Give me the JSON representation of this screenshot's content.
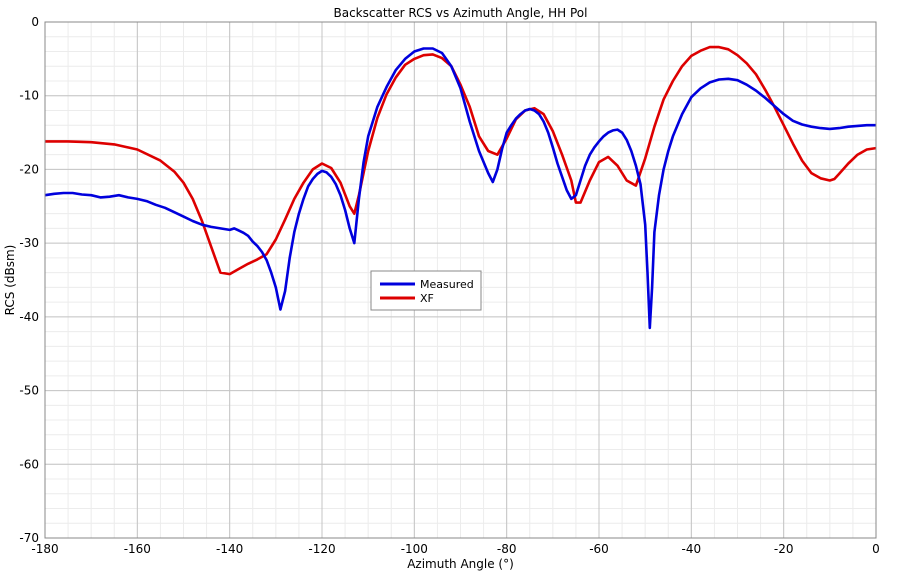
{
  "chart_data": {
    "type": "line",
    "title": "Backscatter RCS vs Azimuth Angle, HH Pol",
    "xlabel": "Azimuth Angle (°)",
    "ylabel": "RCS (dBsm)",
    "xlim": [
      -180,
      0
    ],
    "ylim": [
      -70,
      0
    ],
    "xticks": [
      -180,
      -160,
      -140,
      -120,
      -100,
      -80,
      -60,
      -40,
      -20,
      0
    ],
    "yticks": [
      0,
      -10,
      -20,
      -30,
      -40,
      -50,
      -60,
      -70
    ],
    "xtick_labels": [
      "-180",
      "-160",
      "-140",
      "-120",
      "-100",
      "-80",
      "-60",
      "-40",
      "-20",
      "0"
    ],
    "ytick_labels": [
      "0",
      "-10",
      "-20",
      "-30",
      "-40",
      "-50",
      "-60",
      "-70"
    ],
    "grid": true,
    "minor_grid": true,
    "legend_position": "center-left",
    "series": [
      {
        "name": "Measured",
        "color": "#0000dd",
        "x": [
          -180,
          -178,
          -176,
          -174,
          -172,
          -170,
          -168,
          -166,
          -164,
          -162,
          -160,
          -158,
          -156,
          -154,
          -152,
          -150,
          -148,
          -146,
          -144,
          -142,
          -140,
          -139,
          -138,
          -137,
          -136,
          -135,
          -134,
          -133,
          -132,
          -131,
          -130,
          -129,
          -128,
          -127,
          -126,
          -125,
          -124,
          -123,
          -122,
          -121,
          -120,
          -119,
          -118,
          -117,
          -116,
          -115,
          -114,
          -113,
          -112,
          -111,
          -110,
          -108,
          -106,
          -104,
          -102,
          -100,
          -98,
          -96,
          -94,
          -92,
          -90,
          -88,
          -86,
          -84,
          -83,
          -82,
          -81,
          -80,
          -79,
          -78,
          -77,
          -76,
          -75,
          -74,
          -73,
          -72,
          -71,
          -70,
          -69,
          -68,
          -67,
          -66,
          -65,
          -64,
          -63,
          -62,
          -61,
          -60,
          -59,
          -58,
          -57,
          -56,
          -55,
          -54,
          -53,
          -52,
          -51,
          -50,
          -49.5,
          -49,
          -48.5,
          -48,
          -47,
          -46,
          -45,
          -44,
          -42,
          -40,
          -38,
          -36,
          -34,
          -32,
          -30,
          -28,
          -26,
          -24,
          -22,
          -20,
          -18,
          -16,
          -14,
          -12,
          -10,
          -8,
          -6,
          -4,
          -2,
          0
        ],
        "y": [
          -23.5,
          -23.3,
          -23.2,
          -23.2,
          -23.4,
          -23.5,
          -23.8,
          -23.7,
          -23.5,
          -23.8,
          -24.0,
          -24.3,
          -24.8,
          -25.2,
          -25.8,
          -26.4,
          -27.0,
          -27.5,
          -27.8,
          -28.0,
          -28.2,
          -28.0,
          -28.3,
          -28.6,
          -29.0,
          -29.8,
          -30.4,
          -31.2,
          -32.3,
          -34.0,
          -36.0,
          -39.0,
          -36.5,
          -32.0,
          -28.5,
          -26.0,
          -24.0,
          -22.3,
          -21.3,
          -20.6,
          -20.2,
          -20.4,
          -21.0,
          -22.0,
          -23.5,
          -25.5,
          -28.0,
          -30.0,
          -24.0,
          -19.0,
          -15.5,
          -11.5,
          -8.8,
          -6.5,
          -5.0,
          -4.0,
          -3.6,
          -3.6,
          -4.2,
          -6.0,
          -9.0,
          -13.5,
          -17.5,
          -20.5,
          -21.7,
          -20.0,
          -17.2,
          -15.0,
          -14.0,
          -13.1,
          -12.5,
          -12.0,
          -11.8,
          -12.0,
          -12.5,
          -13.5,
          -15.0,
          -17.0,
          -19.2,
          -21.0,
          -22.8,
          -24.0,
          -23.5,
          -21.5,
          -19.5,
          -18.0,
          -17.0,
          -16.2,
          -15.5,
          -15.0,
          -14.7,
          -14.6,
          -15.0,
          -16.0,
          -17.5,
          -19.5,
          -22.0,
          -27.5,
          -34.0,
          -41.5,
          -36.0,
          -28.5,
          -23.5,
          -20.0,
          -17.5,
          -15.5,
          -12.5,
          -10.2,
          -9.0,
          -8.2,
          -7.8,
          -7.7,
          -7.9,
          -8.5,
          -9.3,
          -10.3,
          -11.4,
          -12.5,
          -13.4,
          -13.9,
          -14.2,
          -14.4,
          -14.5,
          -14.4,
          -14.2,
          -14.1,
          -14.0,
          -14.0
        ]
      },
      {
        "name": "XF",
        "color": "#dd0000",
        "x": [
          -180,
          -175,
          -170,
          -165,
          -160,
          -155,
          -152,
          -150,
          -148,
          -146,
          -144,
          -142,
          -140,
          -138,
          -136,
          -134,
          -132,
          -130,
          -128,
          -126,
          -124,
          -122,
          -120,
          -118,
          -116,
          -114,
          -113,
          -112,
          -110,
          -108,
          -106,
          -104,
          -102,
          -100,
          -98,
          -96,
          -94,
          -92,
          -90,
          -88,
          -86,
          -84,
          -82,
          -80,
          -78,
          -76,
          -74,
          -72,
          -70,
          -68,
          -66,
          -65,
          -64,
          -62,
          -60,
          -58,
          -56,
          -54,
          -52,
          -50,
          -48,
          -46,
          -44,
          -42,
          -40,
          -38,
          -36,
          -34,
          -32,
          -30,
          -28,
          -26,
          -24,
          -22,
          -20,
          -18,
          -16,
          -14,
          -12,
          -10,
          -9,
          -8,
          -6,
          -4,
          -2,
          0
        ],
        "y": [
          -16.2,
          -16.2,
          -16.3,
          -16.6,
          -17.3,
          -18.8,
          -20.3,
          -21.8,
          -24.0,
          -27.0,
          -30.5,
          -34.0,
          -34.2,
          -33.5,
          -32.8,
          -32.2,
          -31.5,
          -29.5,
          -26.8,
          -24.0,
          -21.8,
          -20.0,
          -19.2,
          -19.8,
          -21.8,
          -25.0,
          -26.0,
          -23.5,
          -17.5,
          -13.0,
          -9.8,
          -7.5,
          -5.8,
          -5.0,
          -4.5,
          -4.4,
          -4.9,
          -6.0,
          -8.5,
          -11.5,
          -15.5,
          -17.5,
          -18.0,
          -15.8,
          -13.2,
          -12.0,
          -11.7,
          -12.5,
          -14.8,
          -18.0,
          -21.5,
          -24.5,
          -24.5,
          -21.5,
          -19.0,
          -18.3,
          -19.5,
          -21.5,
          -22.2,
          -18.5,
          -14.2,
          -10.5,
          -8.0,
          -6.0,
          -4.6,
          -3.9,
          -3.4,
          -3.4,
          -3.7,
          -4.5,
          -5.6,
          -7.1,
          -9.2,
          -11.5,
          -14.0,
          -16.5,
          -18.8,
          -20.5,
          -21.2,
          -21.5,
          -21.3,
          -20.6,
          -19.2,
          -18.0,
          -17.3,
          -17.1
        ]
      }
    ]
  }
}
